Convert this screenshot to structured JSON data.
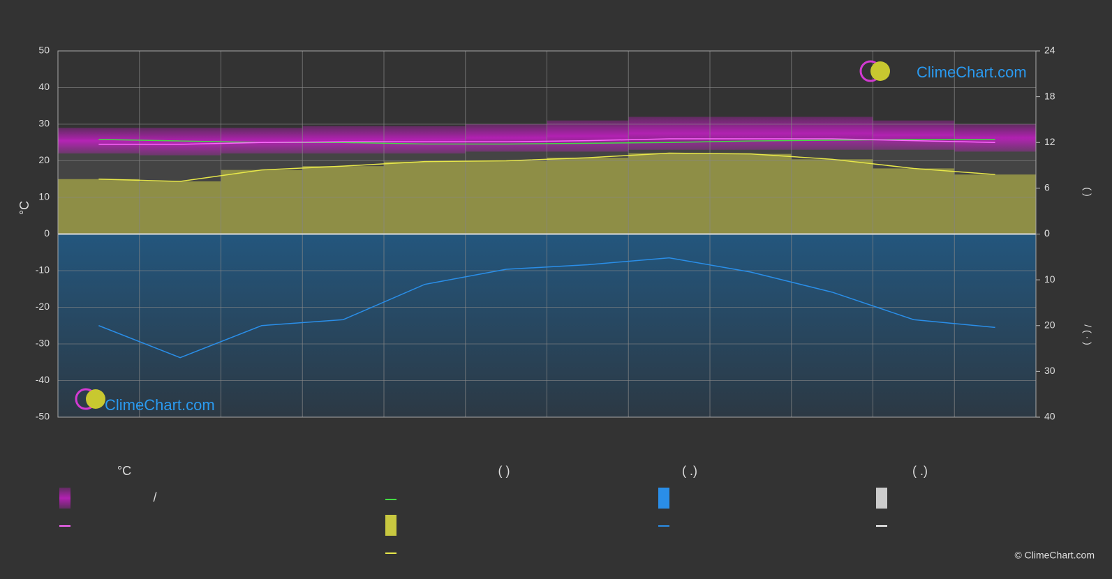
{
  "chart_data": {
    "type": "line",
    "categories": [
      null,
      null,
      null,
      null,
      null,
      null,
      null,
      null,
      null,
      null,
      null,
      null
    ],
    "ylabel": "°C",
    "ylim": [
      -50,
      50
    ],
    "yticks": [
      -50,
      -40,
      -30,
      -20,
      -10,
      0,
      10,
      20,
      30,
      40,
      50
    ],
    "y2label": "(          )",
    "y2lim": [
      0,
      24
    ],
    "y2ticks": [
      0,
      6,
      12,
      18,
      24
    ],
    "y3label": "/     (  ·  )",
    "y3lim": [
      0,
      40
    ],
    "y3ticks": [
      0,
      10,
      20,
      30,
      40
    ],
    "grid": true,
    "series": [
      {
        "color": "#c81ec8",
        "values": [
          29,
          29,
          29,
          29.5,
          29.5,
          30,
          31,
          32,
          32,
          32,
          31,
          30
        ]
      },
      {
        "color": "#c81ec8",
        "values": [
          22,
          21.5,
          22,
          22,
          22,
          22.5,
          22.5,
          23,
          23,
          23,
          23,
          22.5
        ]
      },
      {
        "color": "#44dd44",
        "axis": "y2",
        "values": [
          12.4,
          12.2,
          12.0,
          12.0,
          11.8,
          11.8,
          11.9,
          12.0,
          12.2,
          12.3,
          12.4,
          12.4
        ]
      },
      {
        "color": "#e8e84a",
        "axis": "y2",
        "values": [
          7.2,
          6.9,
          8.4,
          8.9,
          9.5,
          9.6,
          10.0,
          10.6,
          10.5,
          9.8,
          8.6,
          7.8
        ]
      },
      {
        "color": "#ff66ff",
        "values": [
          24.5,
          24.5,
          25,
          25.2,
          25.2,
          25.2,
          25.5,
          26,
          26,
          26,
          25.5,
          25
        ]
      },
      {
        "color": "#2a8ee8",
        "axis": "y3",
        "values": [
          20,
          27,
          20,
          18.7,
          11,
          7.7,
          6.7,
          5.2,
          8.3,
          12.7,
          18.7,
          20.4
        ]
      }
    ]
  },
  "legend": {
    "headers": [
      "°C",
      "(          )",
      "(   .)",
      "(   .)"
    ],
    "slash": "/"
  },
  "watermark": "ClimeChart.com",
  "copyright": "© ClimeChart.com"
}
